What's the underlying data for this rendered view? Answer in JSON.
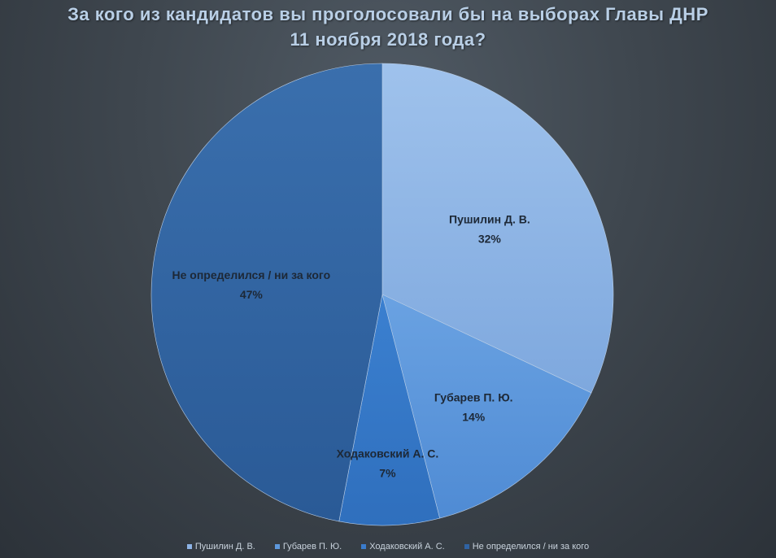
{
  "chart_data": {
    "type": "pie",
    "title_lines": [
      "За кого из кандидатов вы проголосовали бы на выборах Главы ДНР",
      "11 ноября 2018 года?"
    ],
    "slices": [
      {
        "name": "Пушилин Д. В.",
        "value": 32,
        "label": "32%",
        "color": "#8db3e6"
      },
      {
        "name": "Губарев П. Ю.",
        "value": 14,
        "label": "14%",
        "color": "#5d98dc"
      },
      {
        "name": "Ходаковский А. С.",
        "value": 7,
        "label": "7%",
        "color": "#3a7ccc"
      },
      {
        "name": "Не определился / ни за кого",
        "value": 47,
        "label": "47%",
        "color": "#2f63a3"
      }
    ],
    "legend_position": "bottom"
  }
}
